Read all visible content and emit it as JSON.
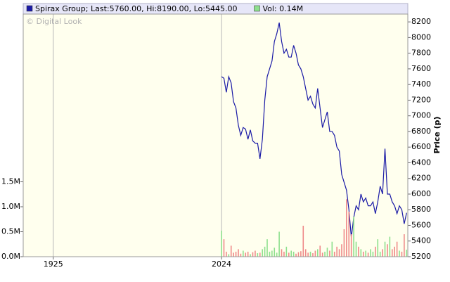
{
  "chart_data": {
    "type": "line",
    "watermark": "© Digital Look",
    "y2label": "Price (p)",
    "categories": [
      null,
      null,
      null,
      null,
      null,
      null,
      null,
      null,
      null,
      null,
      null,
      null,
      "1925",
      null,
      null,
      null,
      null,
      null,
      null,
      null,
      null,
      null,
      null,
      null,
      null,
      null,
      null,
      null,
      null,
      null,
      null,
      null,
      null,
      null,
      null,
      null,
      null,
      null,
      null,
      null,
      null,
      null,
      null,
      null,
      null,
      null,
      null,
      null,
      null,
      null,
      null,
      null,
      null,
      null,
      null,
      null,
      null,
      null,
      null,
      null,
      null,
      null,
      null,
      null,
      null,
      null,
      null,
      null,
      null,
      null,
      null,
      null,
      null,
      null,
      null,
      null,
      null,
      null,
      null,
      null,
      null,
      null,
      "2024",
      null,
      null,
      null,
      null,
      null,
      null,
      null,
      null,
      null,
      null,
      null,
      null,
      null,
      null,
      null,
      null,
      null,
      null,
      null,
      null,
      null,
      null,
      null,
      null,
      null,
      null,
      null,
      null,
      null,
      null,
      null,
      null,
      null,
      null,
      null,
      null,
      null,
      null,
      null,
      null,
      null,
      null,
      null,
      null,
      null,
      null,
      null,
      null,
      null,
      null,
      null,
      null,
      null,
      null,
      null,
      null,
      null,
      null,
      null,
      null,
      null,
      null,
      null,
      null,
      null,
      null,
      null,
      null,
      null,
      null,
      null,
      null,
      null,
      null,
      null,
      null,
      null
    ],
    "series": [
      {
        "name": "Spirax Group; Last:5760.00, Hi:8190.00, Lo:5445.00",
        "color": "#1a1aa6",
        "axis": "y2",
        "values": [
          null,
          null,
          null,
          null,
          null,
          null,
          null,
          null,
          null,
          null,
          null,
          null,
          null,
          null,
          null,
          null,
          null,
          null,
          null,
          null,
          null,
          null,
          null,
          null,
          null,
          null,
          null,
          null,
          null,
          null,
          null,
          null,
          null,
          null,
          null,
          null,
          null,
          null,
          null,
          null,
          null,
          null,
          null,
          null,
          null,
          null,
          null,
          null,
          null,
          null,
          null,
          null,
          null,
          null,
          null,
          null,
          null,
          null,
          null,
          null,
          null,
          null,
          null,
          null,
          null,
          null,
          null,
          null,
          null,
          null,
          null,
          null,
          null,
          null,
          null,
          null,
          null,
          null,
          null,
          null,
          null,
          null,
          7500,
          7480,
          7300,
          7500,
          7420,
          7180,
          7100,
          6880,
          6750,
          6850,
          6830,
          6700,
          6820,
          6680,
          6650,
          6650,
          6450,
          6700,
          7200,
          7500,
          7600,
          7700,
          7950,
          8050,
          8190,
          7950,
          7800,
          7850,
          7750,
          7750,
          7900,
          7800,
          7650,
          7600,
          7500,
          7350,
          7200,
          7250,
          7150,
          7100,
          7350,
          7100,
          6850,
          6950,
          7050,
          6800,
          6800,
          6750,
          6600,
          6550,
          6250,
          6150,
          6050,
          5800,
          5445,
          5700,
          5850,
          5800,
          6000,
          5900,
          5950,
          5850,
          5850,
          5900,
          5750,
          5900,
          6100,
          6000,
          6580,
          6000,
          6000,
          5900,
          5850,
          5750,
          5850,
          5800,
          5620,
          5760
        ]
      },
      {
        "name": "Vol: 0.14M",
        "type": "bar",
        "color": "#8ee08e",
        "down_color": "#ef8a8a",
        "values": [
          null,
          null,
          null,
          null,
          null,
          null,
          null,
          null,
          null,
          null,
          null,
          null,
          null,
          null,
          null,
          null,
          null,
          null,
          null,
          null,
          null,
          null,
          null,
          null,
          null,
          null,
          null,
          null,
          null,
          null,
          null,
          null,
          null,
          null,
          null,
          null,
          null,
          null,
          null,
          null,
          null,
          null,
          null,
          null,
          null,
          null,
          null,
          null,
          null,
          null,
          null,
          null,
          null,
          null,
          null,
          null,
          null,
          null,
          null,
          null,
          null,
          null,
          null,
          null,
          null,
          null,
          null,
          null,
          null,
          null,
          null,
          null,
          null,
          null,
          null,
          null,
          null,
          null,
          null,
          null,
          null,
          null,
          0.52,
          0.35,
          0.1,
          0.05,
          0.22,
          0.08,
          0.1,
          0.15,
          0.06,
          0.12,
          0.08,
          0.1,
          0.05,
          0.09,
          0.12,
          0.07,
          0.08,
          0.15,
          0.2,
          0.35,
          0.1,
          0.12,
          0.18,
          0.08,
          0.5,
          0.15,
          0.1,
          0.2,
          0.08,
          0.12,
          0.1,
          0.06,
          0.09,
          0.11,
          0.62,
          0.15,
          0.08,
          0.1,
          0.07,
          0.12,
          0.15,
          0.22,
          0.08,
          0.1,
          0.18,
          0.12,
          0.3,
          0.1,
          0.2,
          0.15,
          0.25,
          0.55,
          1.15,
          0.9,
          0.45,
          0.8,
          0.3,
          0.2,
          0.15,
          0.1,
          0.12,
          0.08,
          0.15,
          0.1,
          0.2,
          0.35,
          0.1,
          0.15,
          0.3,
          0.25,
          0.4,
          0.15,
          0.2,
          0.3,
          0.12,
          0.1,
          0.45,
          0.14
        ]
      }
    ],
    "ylim": [
      0,
      4.86
    ],
    "yticks": [
      {
        "value": 0,
        "label": "0.0M"
      },
      {
        "value": 0.5,
        "label": "0.5M"
      },
      {
        "value": 1.0,
        "label": "1.0M"
      },
      {
        "value": 1.5,
        "label": "1.5M"
      }
    ],
    "y2lim": [
      5200,
      8300
    ],
    "y2ticks": [
      5200,
      5400,
      5600,
      5800,
      6000,
      6200,
      6400,
      6600,
      6800,
      7000,
      7200,
      7400,
      7600,
      7800,
      8000,
      8200
    ],
    "grid": true,
    "plot_background": "#ffffee",
    "header_background": "#e6e6f8"
  }
}
